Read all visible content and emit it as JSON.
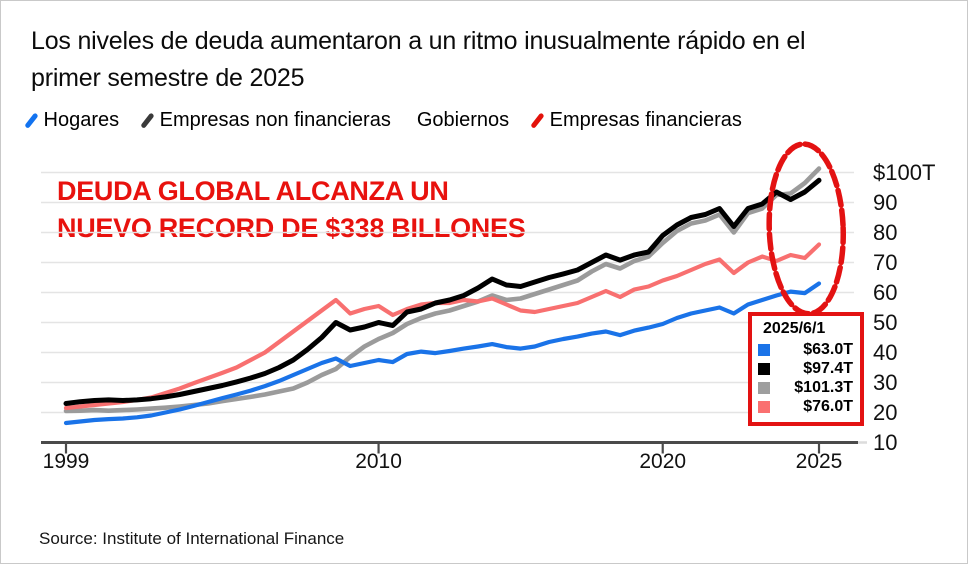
{
  "header": {
    "title_line1": "Los niveles de deuda aumentaron a un ritmo inusualmente rápido en el",
    "title_line2": "primer semestre de 2025"
  },
  "legend": {
    "items": [
      {
        "label": "Hogares",
        "marker_color": "#1273f0"
      },
      {
        "label": "Empresas non financieras",
        "marker_color": "#3a3a3a"
      },
      {
        "label": "Gobiernos",
        "marker_color": null
      },
      {
        "label": "Empresas financieras",
        "marker_color": "#e3120b"
      }
    ]
  },
  "annotation": {
    "line1": "DEUDA GLOBAL ALCANZA UN",
    "line2": "NUEVO RECORD DE $338 BILLONES",
    "color": "#e8120e"
  },
  "tooltip": {
    "date": "2025/6/1",
    "border_color": "#e31212",
    "rows": [
      {
        "series": "Hogares",
        "color": "#1a73e8",
        "value": "$63.0T"
      },
      {
        "series": "Empresas non financieras",
        "color": "#000000",
        "value": "$97.4T"
      },
      {
        "series": "Gobiernos",
        "color": "#9e9e9e",
        "value": "$101.3T"
      },
      {
        "series": "Empresas financieras",
        "color": "#fa7070",
        "value": "$76.0T"
      }
    ]
  },
  "source": {
    "text": "Source: Institute of International Finance"
  },
  "chart_data": {
    "type": "line",
    "title": "Los niveles de deuda aumentaron a un ritmo inusualmente rápido en el primer semestre de 2025",
    "unit": "USD trillions",
    "grid": true,
    "legend_position": "top",
    "ylim": [
      10,
      105
    ],
    "xlim": [
      1999,
      2025.5
    ],
    "x": [
      1999,
      1999.5,
      2000,
      2000.5,
      2001,
      2001.5,
      2002,
      2002.5,
      2003,
      2003.5,
      2004,
      2004.5,
      2005,
      2005.5,
      2006,
      2006.5,
      2007,
      2007.5,
      2008,
      2008.5,
      2009,
      2009.5,
      2010,
      2010.5,
      2011,
      2011.5,
      2012,
      2012.5,
      2013,
      2013.5,
      2014,
      2014.5,
      2015,
      2015.5,
      2016,
      2016.5,
      2017,
      2017.5,
      2018,
      2018.5,
      2019,
      2019.5,
      2020,
      2020.5,
      2021,
      2021.5,
      2022,
      2022.5,
      2023,
      2023.5,
      2024,
      2024.5,
      2025,
      2025.5
    ],
    "series": [
      {
        "name": "Hogares",
        "color": "#1a73e8",
        "stroke_width": 4.2,
        "last_value": 63.0,
        "values": [
          16.5,
          17.0,
          17.5,
          17.8,
          18.0,
          18.4,
          19.0,
          20.0,
          21.0,
          22.2,
          23.5,
          24.8,
          26.0,
          27.3,
          28.8,
          30.5,
          32.5,
          34.5,
          36.5,
          38.0,
          35.5,
          36.5,
          37.5,
          36.8,
          39.5,
          40.3,
          39.8,
          40.5,
          41.3,
          42.0,
          42.8,
          41.8,
          41.3,
          42.0,
          43.5,
          44.5,
          45.3,
          46.3,
          47.0,
          45.8,
          47.3,
          48.3,
          49.5,
          51.5,
          53.0,
          54.0,
          55.0,
          53.0,
          56.0,
          57.5,
          59.0,
          60.3,
          59.8,
          63.0
        ]
      },
      {
        "name": "Empresas non financieras",
        "color": "#000000",
        "stroke_width": 5,
        "last_value": 97.4,
        "values": [
          23.0,
          23.6,
          24.0,
          24.2,
          24.0,
          24.2,
          24.6,
          25.2,
          26.0,
          27.0,
          28.0,
          29.0,
          30.2,
          31.5,
          33.0,
          35.0,
          37.5,
          41.0,
          45.0,
          50.0,
          47.5,
          48.5,
          50.0,
          49.0,
          53.5,
          54.5,
          56.5,
          57.5,
          59.0,
          61.5,
          64.5,
          62.5,
          62.0,
          63.5,
          65.0,
          66.2,
          67.5,
          70.0,
          72.5,
          70.8,
          72.5,
          73.5,
          79.0,
          82.5,
          85.0,
          86.0,
          88.0,
          82.0,
          88.0,
          89.5,
          93.5,
          91.0,
          93.5,
          97.4
        ]
      },
      {
        "name": "Gobiernos",
        "color": "#9b9b9b",
        "stroke_width": 4.6,
        "last_value": 101.3,
        "values": [
          20.5,
          20.6,
          20.8,
          20.6,
          20.8,
          21.0,
          21.3,
          21.6,
          22.0,
          22.5,
          23.0,
          23.8,
          24.5,
          25.2,
          26.0,
          27.0,
          28.0,
          30.0,
          32.5,
          34.5,
          38.5,
          42.0,
          44.5,
          46.5,
          49.5,
          51.5,
          53.0,
          54.0,
          55.5,
          57.0,
          59.0,
          57.5,
          58.0,
          59.5,
          61.0,
          62.5,
          64.0,
          67.0,
          69.5,
          68.0,
          70.5,
          72.0,
          76.5,
          80.5,
          83.0,
          84.0,
          86.0,
          80.0,
          86.5,
          88.0,
          92.5,
          93.0,
          96.5,
          101.3
        ]
      },
      {
        "name": "Empresas financieras",
        "color": "#f87070",
        "stroke_width": 4.2,
        "last_value": 76.0,
        "values": [
          21.5,
          22.0,
          22.5,
          23.0,
          23.5,
          24.2,
          25.0,
          26.5,
          28.0,
          29.8,
          31.5,
          33.2,
          35.0,
          37.5,
          40.0,
          43.5,
          47.0,
          50.5,
          54.0,
          57.5,
          53.0,
          54.5,
          55.5,
          52.5,
          54.5,
          56.0,
          56.5,
          56.5,
          57.5,
          57.0,
          58.0,
          56.0,
          54.0,
          53.5,
          54.5,
          55.5,
          56.5,
          58.5,
          60.5,
          58.5,
          61.0,
          62.0,
          64.0,
          65.5,
          67.5,
          69.5,
          71.0,
          66.5,
          70.0,
          72.0,
          70.5,
          72.5,
          71.5,
          76.0
        ]
      }
    ],
    "y_ticks": [
      {
        "label": "$100T",
        "value": 100
      },
      {
        "label": "90",
        "value": 90
      },
      {
        "label": "80",
        "value": 80
      },
      {
        "label": "70",
        "value": 70
      },
      {
        "label": "60",
        "value": 60
      },
      {
        "label": "50",
        "value": 50
      },
      {
        "label": "40",
        "value": 40
      },
      {
        "label": "30",
        "value": 30
      },
      {
        "label": "20",
        "value": 20
      },
      {
        "label": "10",
        "value": 10
      }
    ],
    "x_ticks": [
      {
        "label": "1999",
        "year": 1999
      },
      {
        "label": "2010",
        "year": 2010
      },
      {
        "label": "2020",
        "year": 2020
      },
      {
        "label": "2025",
        "year": 2025.5
      }
    ],
    "highlight_ellipse": {
      "center_year": 2025.05,
      "center_value": 81.2,
      "rx_years": 1.3,
      "ry_units": 28.3,
      "color": "#e31212"
    }
  }
}
